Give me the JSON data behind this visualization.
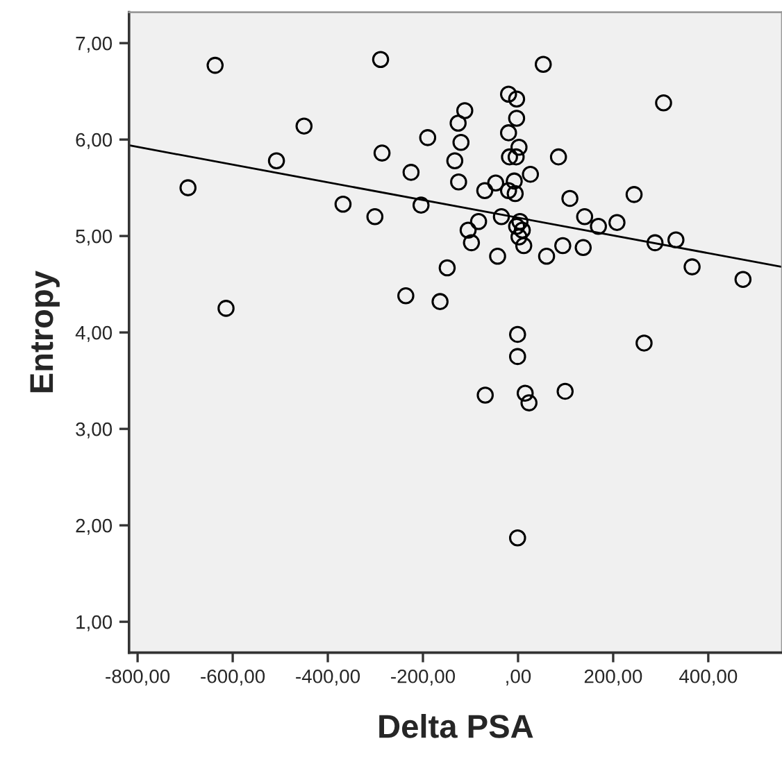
{
  "chart_data": {
    "type": "scatter",
    "xlabel": "Delta PSA",
    "ylabel": "Entropy",
    "xlim": [
      -818,
      555
    ],
    "ylim": [
      0.68,
      7.32
    ],
    "xticks": [
      {
        "value": -800,
        "label": "-800,00"
      },
      {
        "value": -600,
        "label": "-600,00"
      },
      {
        "value": -400,
        "label": "-400,00"
      },
      {
        "value": -200,
        "label": "-200,00"
      },
      {
        "value": 0,
        "label": ",00"
      },
      {
        "value": 200,
        "label": "200,00"
      },
      {
        "value": 400,
        "label": "400,00"
      }
    ],
    "yticks": [
      {
        "value": 1,
        "label": "1,00"
      },
      {
        "value": 2,
        "label": "2,00"
      },
      {
        "value": 3,
        "label": "3,00"
      },
      {
        "value": 4,
        "label": "4,00"
      },
      {
        "value": 5,
        "label": "5,00"
      },
      {
        "value": 6,
        "label": "6,00"
      },
      {
        "value": 7,
        "label": "7,00"
      }
    ],
    "grid": false,
    "legend": false,
    "marker": "circle",
    "series": [
      {
        "color": "#000000",
        "x": [
          -694,
          -637,
          -614,
          -508,
          -450,
          -368,
          -301,
          -289,
          -286,
          -236,
          -225,
          -204,
          -190,
          -164,
          -149,
          -112,
          -126,
          -120,
          -133,
          -125,
          -70,
          -47,
          -105,
          -83,
          -98,
          -43,
          -35,
          -20,
          -3,
          -3,
          -20,
          2,
          -18,
          -4,
          53,
          85,
          26,
          -8,
          -20,
          -6,
          4,
          -3,
          9,
          2,
          12,
          60,
          94,
          109,
          137,
          140,
          169,
          208,
          244,
          306,
          288,
          332,
          366,
          473,
          -1,
          265,
          -1,
          -69,
          15,
          23,
          99,
          -1
        ],
        "values": [
          5.5,
          6.77,
          4.25,
          5.78,
          6.14,
          5.33,
          5.2,
          6.83,
          5.86,
          4.38,
          5.66,
          5.32,
          6.02,
          4.32,
          4.67,
          6.3,
          6.17,
          5.97,
          5.78,
          5.56,
          5.47,
          5.55,
          5.06,
          5.15,
          4.93,
          4.79,
          5.2,
          6.47,
          6.42,
          6.22,
          6.07,
          5.92,
          5.82,
          5.82,
          6.78,
          5.82,
          5.64,
          5.57,
          5.47,
          5.44,
          5.15,
          5.1,
          5.06,
          4.99,
          4.9,
          4.79,
          4.9,
          5.39,
          4.88,
          5.2,
          5.1,
          5.14,
          5.43,
          6.38,
          4.93,
          4.96,
          4.68,
          4.55,
          3.98,
          3.89,
          3.75,
          3.35,
          3.37,
          3.27,
          3.39,
          1.87
        ]
      },
      {
        "type": "line",
        "marker": "none",
        "color": "#000000",
        "x": [
          -818,
          555
        ],
        "values": [
          5.94,
          4.68
        ]
      }
    ]
  }
}
